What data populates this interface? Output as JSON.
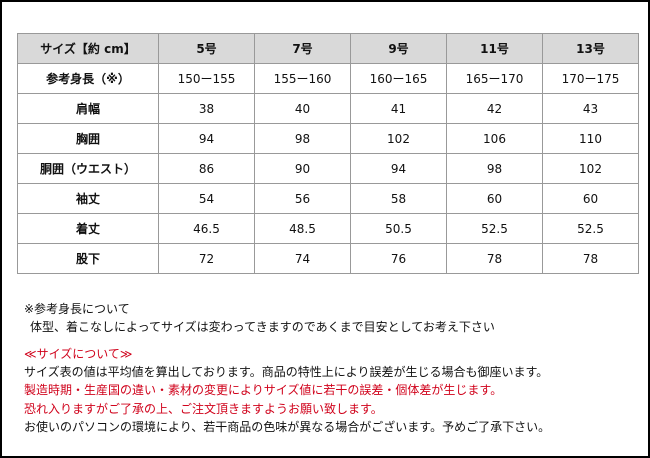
{
  "table": {
    "header": [
      "サイズ【約 cm】",
      "5号",
      "7号",
      "9号",
      "11号",
      "13号"
    ],
    "rows": [
      [
        "参考身長（※）",
        "150ー155",
        "155ー160",
        "160ー165",
        "165ー170",
        "170ー175"
      ],
      [
        "肩幅",
        38,
        40,
        41,
        42,
        43
      ],
      [
        "胸囲",
        94,
        98,
        102,
        106,
        110
      ],
      [
        "胴囲（ウエスト）",
        86,
        90,
        94,
        98,
        102
      ],
      [
        "袖丈",
        54,
        56,
        58,
        60,
        60
      ],
      [
        "着丈",
        46.5,
        48.5,
        50.5,
        52.5,
        52.5
      ],
      [
        "股下",
        72,
        74,
        76,
        78,
        78
      ]
    ]
  },
  "notes": {
    "height_title": "※参考身長について",
    "height_text": "体型、着こなしによってサイズは変わってきますのであくまで目安としてお考え下さい",
    "size_title": "≪サイズについて≫",
    "lines": [
      "サイズ表の値は平均値を算出しております。商品の特性上により誤差が生じる場合も御座います。",
      "製造時期・生産国の違い・素材の変更によりサイズ値に若干の誤差・個体差が生じます。",
      "恐れ入りますがご了承の上、ご注文頂きますようお願い致します。",
      "お使いのパソコンの環境により、若干商品の色味が異なる場合がございます。予めご了承下さい。"
    ]
  }
}
